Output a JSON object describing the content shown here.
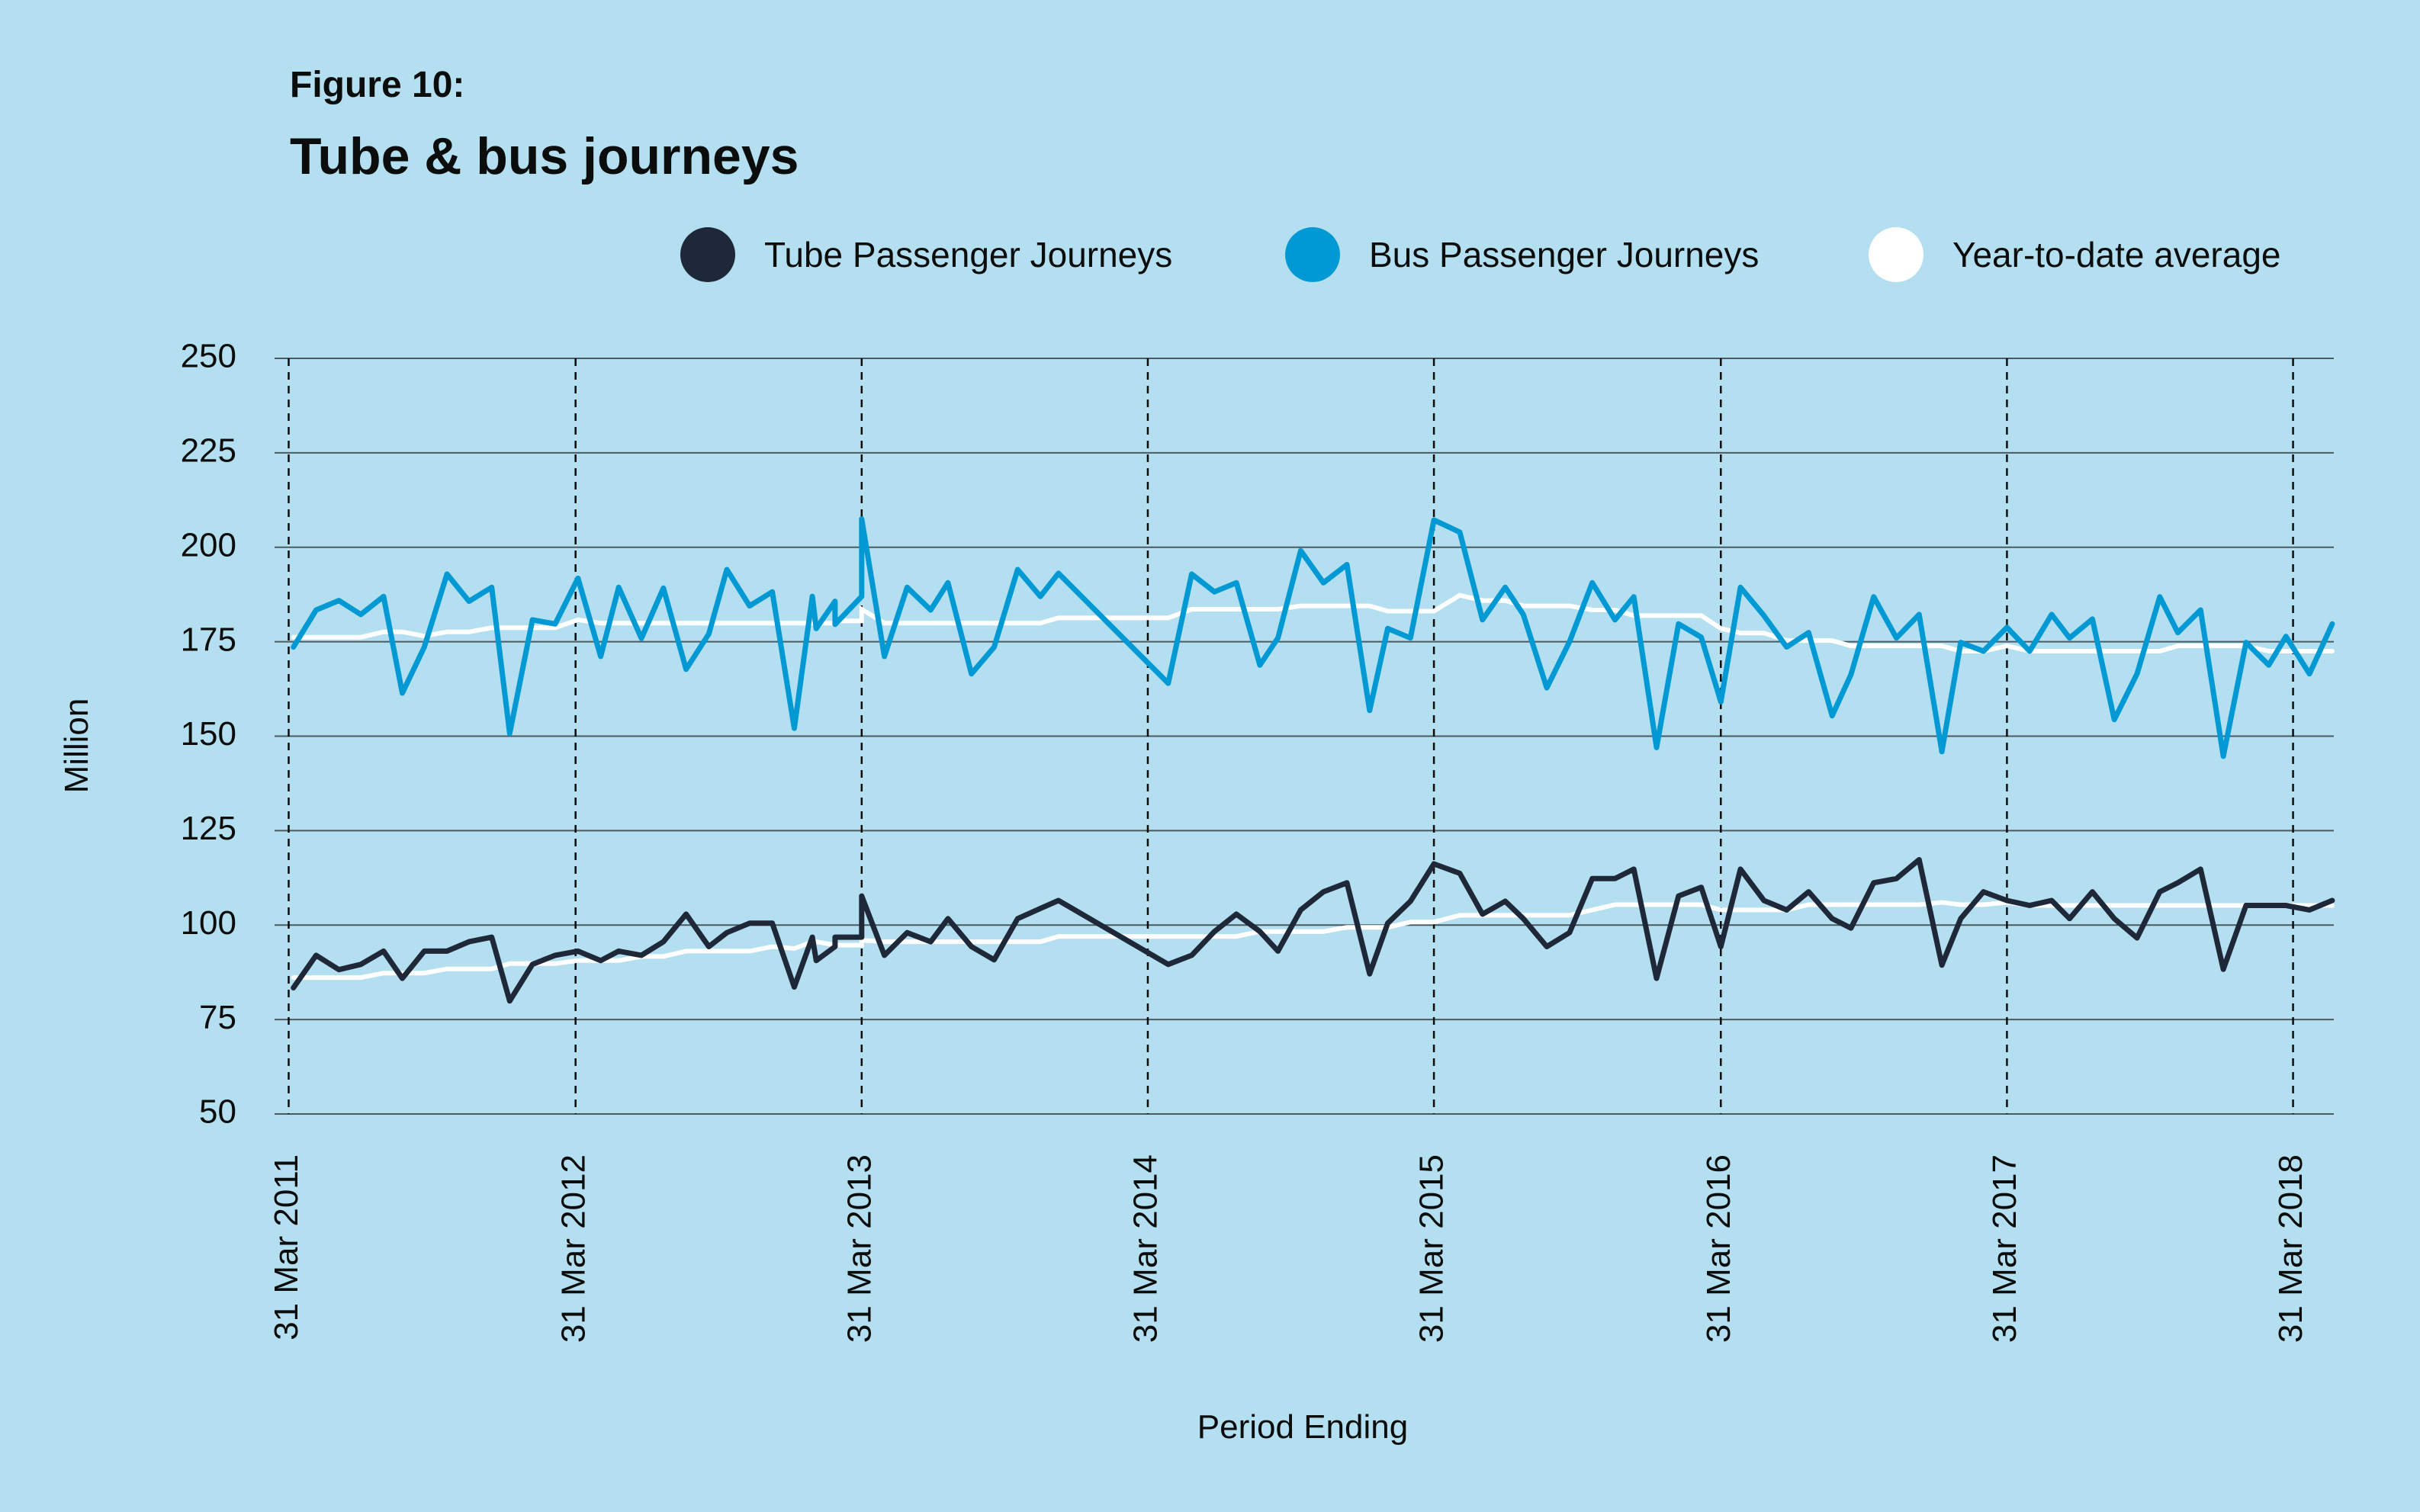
{
  "figure_label": "Figure 10:",
  "colors": {
    "background": "#b3dff0",
    "tube": "#1e2838",
    "bus": "#0099d4",
    "ytd": "#ffffff",
    "grid": "#4a5a63"
  },
  "legend": [
    {
      "label": "Tube Passenger Journeys",
      "color": "#1e2838"
    },
    {
      "label": "Bus Passenger Journeys",
      "color": "#0099d4"
    },
    {
      "label": "Year-to-date average",
      "color": "#ffffff"
    }
  ],
  "chart_data": {
    "type": "line",
    "title": "Tube & bus journeys",
    "xlabel": "Period Ending",
    "ylabel": "Million",
    "ylim": [
      50,
      250
    ],
    "yticks": [
      50,
      75,
      100,
      125,
      150,
      175,
      200,
      225,
      250
    ],
    "xticks": [
      {
        "date": "2011-03-31",
        "label": "31 Mar 2011"
      },
      {
        "date": "2012-03-31",
        "label": "31 Mar 2012"
      },
      {
        "date": "2013-03-31",
        "label": "31 Mar 2013"
      },
      {
        "date": "2014-03-31",
        "label": "31 Mar 2014"
      },
      {
        "date": "2015-03-31",
        "label": "31 Mar 2015"
      },
      {
        "date": "2016-03-31",
        "label": "31 Mar 2016"
      },
      {
        "date": "2017-03-31",
        "label": "31 Mar 2017"
      },
      {
        "date": "2018-03-31",
        "label": "31 Mar 2018"
      }
    ],
    "grid": {
      "horizontal": true,
      "vertical_dashed_at_xticks": true
    },
    "legend_position": "top-right",
    "x": [
      "2011-04-06",
      "2011-05-05",
      "2011-06-03",
      "2011-07-01",
      "2011-07-30",
      "2011-08-23",
      "2011-09-20",
      "2011-10-19",
      "2011-11-16",
      "2011-12-15",
      "2012-01-07",
      "2012-02-05",
      "2012-03-05",
      "2012-04-03",
      "2012-05-02",
      "2012-05-25",
      "2012-06-23",
      "2012-07-21",
      "2012-08-19",
      "2012-09-17",
      "2012-10-10",
      "2012-11-08",
      "2012-12-07",
      "2013-01-04",
      "2013-01-27",
      "2013-02-01",
      "2013-02-25",
      "2013-02-25",
      "2013-03-31",
      "2013-03-31",
      "2013-04-29",
      "2013-05-28",
      "2013-06-27",
      "2013-07-19",
      "2013-08-18",
      "2013-09-16",
      "2013-10-16",
      "2013-11-14",
      "2013-12-07",
      "2014-04-26",
      "2014-05-26",
      "2014-06-24",
      "2014-07-22",
      "2014-08-21",
      "2014-09-13",
      "2014-10-12",
      "2014-11-10",
      "2014-12-10",
      "2015-01-08",
      "2015-01-31",
      "2015-03-01",
      "2015-03-31",
      "2015-05-03",
      "2015-06-01",
      "2015-06-30",
      "2015-07-23",
      "2015-08-22",
      "2015-09-20",
      "2015-10-19",
      "2015-11-17",
      "2015-12-11",
      "2016-01-09",
      "2016-02-06",
      "2016-03-06",
      "2016-03-31",
      "2016-04-25",
      "2016-05-25",
      "2016-06-23",
      "2016-07-21",
      "2016-08-20",
      "2016-09-13",
      "2016-10-12",
      "2016-11-10",
      "2016-12-09",
      "2017-01-07",
      "2017-01-31",
      "2017-03-01",
      "2017-03-31",
      "2017-04-29",
      "2017-05-27",
      "2017-06-19",
      "2017-07-18",
      "2017-08-15",
      "2017-09-13",
      "2017-10-12",
      "2017-11-04",
      "2017-12-03",
      "2018-01-01",
      "2018-01-30",
      "2018-02-28",
      "2018-03-22",
      "2018-04-21",
      "2018-05-20"
    ],
    "series": [
      {
        "name": "Bus Passenger Journeys",
        "color": "#0099d4",
        "values": [
          173.6,
          183.4,
          185.9,
          182.2,
          187.0,
          161.4,
          173.6,
          192.9,
          185.7,
          189.4,
          150.7,
          180.8,
          179.7,
          191.8,
          171.1,
          189.4,
          175.9,
          189.2,
          167.7,
          177.1,
          194.1,
          184.5,
          188.2,
          152.1,
          187.0,
          178.5,
          185.7,
          179.6,
          187.0,
          207.5,
          171.1,
          189.4,
          183.4,
          190.6,
          166.5,
          173.6,
          194.1,
          187.0,
          193.1,
          164.0,
          192.9,
          188.2,
          190.6,
          168.8,
          176.0,
          199.1,
          190.6,
          195.4,
          156.8,
          178.5,
          176.0,
          207.2,
          204.0,
          180.8,
          189.4,
          182.2,
          162.8,
          175.0,
          190.6,
          180.8,
          186.9,
          147.0,
          179.7,
          176.2,
          159.1,
          189.4,
          181.9,
          173.6,
          177.4,
          155.4,
          166.3,
          186.9,
          176.0,
          182.2,
          145.9,
          174.8,
          172.5,
          178.8,
          172.5,
          182.2,
          176.0,
          181.0,
          154.4,
          166.5,
          186.9,
          177.4,
          183.4,
          144.7,
          174.8,
          168.8,
          176.4,
          166.5,
          179.7
        ]
      },
      {
        "name": "Tube Passenger Journeys",
        "color": "#1e2838",
        "values": [
          83.4,
          92.0,
          88.2,
          89.6,
          93.1,
          85.9,
          93.1,
          93.1,
          95.6,
          96.8,
          79.9,
          89.6,
          92.0,
          93.1,
          90.6,
          93.1,
          92.0,
          95.6,
          102.9,
          94.3,
          98.0,
          100.5,
          100.5,
          83.6,
          96.8,
          90.6,
          94.3,
          96.8,
          96.8,
          107.7,
          92.0,
          98.0,
          95.6,
          101.7,
          94.3,
          90.8,
          101.7,
          104.4,
          106.5,
          89.6,
          92.0,
          98.3,
          102.9,
          98.3,
          93.1,
          104.0,
          108.8,
          111.2,
          87.1,
          100.5,
          106.3,
          116.2,
          113.7,
          102.9,
          106.3,
          101.7,
          94.3,
          98.0,
          112.3,
          112.3,
          114.8,
          85.9,
          107.7,
          110.0,
          94.3,
          114.8,
          106.5,
          104.0,
          108.8,
          101.7,
          99.2,
          111.2,
          112.3,
          117.3,
          89.4,
          101.7,
          108.8,
          106.5,
          105.2,
          106.5,
          101.7,
          108.8,
          101.7,
          96.6,
          108.8,
          111.2,
          114.8,
          88.3,
          105.2,
          105.2,
          105.2,
          104.0,
          106.5
        ]
      },
      {
        "name": "Year-to-date average",
        "of": "Bus Passenger Journeys",
        "color": "#ffffff",
        "values": [
          176.2,
          176.2,
          176.2,
          176.2,
          177.6,
          177.6,
          176.5,
          177.6,
          177.6,
          178.7,
          178.7,
          178.7,
          178.7,
          180.8,
          179.9,
          179.9,
          179.9,
          179.9,
          179.9,
          179.9,
          179.9,
          179.9,
          179.9,
          179.9,
          179.9,
          179.9,
          179.9,
          180.5,
          180.5,
          183.6,
          179.9,
          179.9,
          179.9,
          179.9,
          179.9,
          179.9,
          179.9,
          179.9,
          181.3,
          181.3,
          183.6,
          183.6,
          183.6,
          183.6,
          183.6,
          184.5,
          184.5,
          184.5,
          184.5,
          183.1,
          183.1,
          183.1,
          187.3,
          185.9,
          185.9,
          184.5,
          184.5,
          184.5,
          183.4,
          183.4,
          181.9,
          181.9,
          181.9,
          181.9,
          178.5,
          177.3,
          177.3,
          175.3,
          175.3,
          175.3,
          173.9,
          173.9,
          173.9,
          173.9,
          173.9,
          172.5,
          172.5,
          173.9,
          172.5,
          172.5,
          172.5,
          172.5,
          172.5,
          172.5,
          172.5,
          173.9,
          173.9,
          173.9,
          173.9,
          172.5,
          172.5,
          172.5,
          172.5
        ]
      },
      {
        "name": "Year-to-date average",
        "of": "Tube Passenger Journeys",
        "color": "#ffffff",
        "values": [
          86.1,
          86.1,
          86.1,
          86.1,
          87.3,
          87.3,
          87.3,
          88.4,
          88.4,
          88.4,
          89.8,
          89.8,
          89.8,
          90.6,
          90.6,
          90.6,
          91.7,
          91.7,
          93.1,
          93.1,
          93.1,
          93.1,
          94.3,
          93.8,
          95.6,
          95.6,
          94.7,
          94.7,
          94.7,
          96.0,
          95.6,
          95.6,
          95.6,
          95.6,
          95.6,
          95.6,
          95.6,
          95.6,
          97.0,
          97.0,
          97.0,
          97.0,
          97.0,
          98.3,
          98.3,
          98.3,
          98.3,
          99.4,
          99.4,
          99.4,
          100.8,
          100.8,
          102.6,
          102.6,
          102.6,
          102.6,
          102.6,
          102.6,
          104.0,
          105.4,
          105.4,
          105.4,
          105.4,
          105.4,
          104.0,
          104.0,
          104.0,
          104.0,
          105.4,
          105.4,
          105.4,
          105.4,
          105.4,
          105.4,
          106.0,
          105.4,
          105.4,
          106.0,
          105.2,
          105.2,
          105.2,
          105.2,
          105.2,
          105.2,
          105.2,
          105.2,
          105.2,
          105.2,
          105.2,
          105.2,
          105.2,
          105.2,
          105.2
        ]
      }
    ]
  }
}
